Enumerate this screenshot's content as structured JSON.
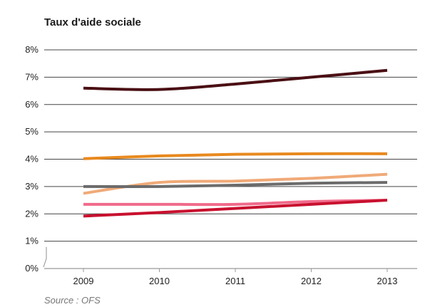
{
  "chart_data": {
    "type": "line",
    "title": "Taux d'aide sociale",
    "source": "Source : OFS",
    "xlabel": "",
    "ylabel": "",
    "categories": [
      "2009",
      "2010",
      "2011",
      "2012",
      "2013"
    ],
    "y_ticks": [
      "0%",
      "1%",
      "2%",
      "3%",
      "4%",
      "5%",
      "6%",
      "7%",
      "8%"
    ],
    "ylim": [
      0,
      8
    ],
    "y_axis_break": true,
    "grid": "horizontal",
    "legend": "none",
    "series": [
      {
        "color": "#4a0f14",
        "values": [
          6.6,
          6.55,
          6.75,
          7.0,
          7.25
        ]
      },
      {
        "color": "#e8891e",
        "values": [
          4.02,
          4.12,
          4.18,
          4.2,
          4.2
        ]
      },
      {
        "color": "#f0aa78",
        "values": [
          2.75,
          3.15,
          3.2,
          3.3,
          3.45
        ]
      },
      {
        "color": "#6b6b6b",
        "values": [
          3.0,
          3.0,
          3.05,
          3.12,
          3.15
        ]
      },
      {
        "color": "#f06a8a",
        "values": [
          2.35,
          2.35,
          2.35,
          2.45,
          2.5
        ]
      },
      {
        "color": "#c8102e",
        "values": [
          1.92,
          2.05,
          2.2,
          2.35,
          2.5
        ]
      }
    ]
  }
}
